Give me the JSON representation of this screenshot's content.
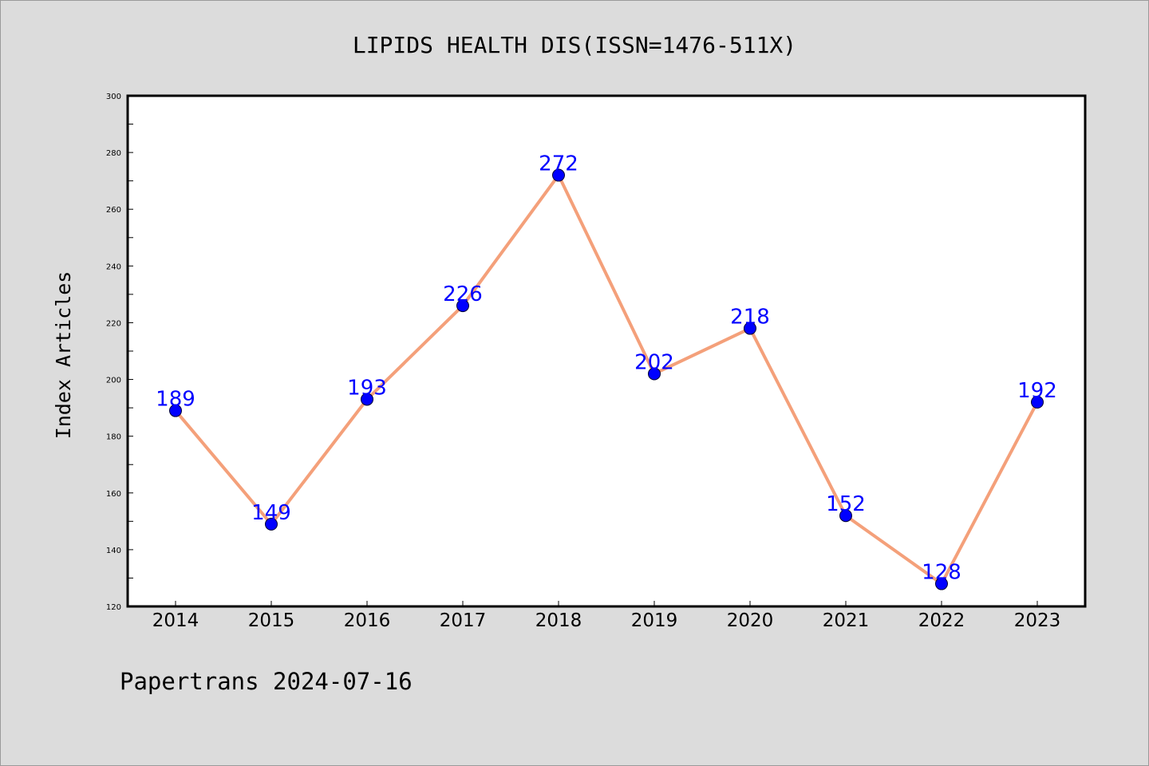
{
  "chart_data": {
    "type": "line",
    "title": "LIPIDS HEALTH DIS(ISSN=1476-511X)",
    "xlabel": "",
    "ylabel": "Index Articles",
    "categories": [
      "2014",
      "2015",
      "2016",
      "2017",
      "2018",
      "2019",
      "2020",
      "2021",
      "2022",
      "2023"
    ],
    "values": [
      189,
      149,
      193,
      226,
      272,
      202,
      218,
      152,
      128,
      192
    ],
    "data_labels": [
      "189",
      "149",
      "193",
      "226",
      "272",
      "202",
      "218",
      "152",
      "128",
      "192"
    ],
    "ylim": [
      120,
      300
    ],
    "yticks": [
      "120",
      "140",
      "160",
      "180",
      "200",
      "220",
      "240",
      "260",
      "280",
      "300"
    ],
    "grid": false,
    "legend": "none",
    "colors": {
      "line": "#f4a07a",
      "marker": "#0000ff",
      "label": "#0000ff",
      "background": "#dcdcdc",
      "plot_background": "#ffffff"
    }
  },
  "footer": "Papertrans 2024-07-16"
}
